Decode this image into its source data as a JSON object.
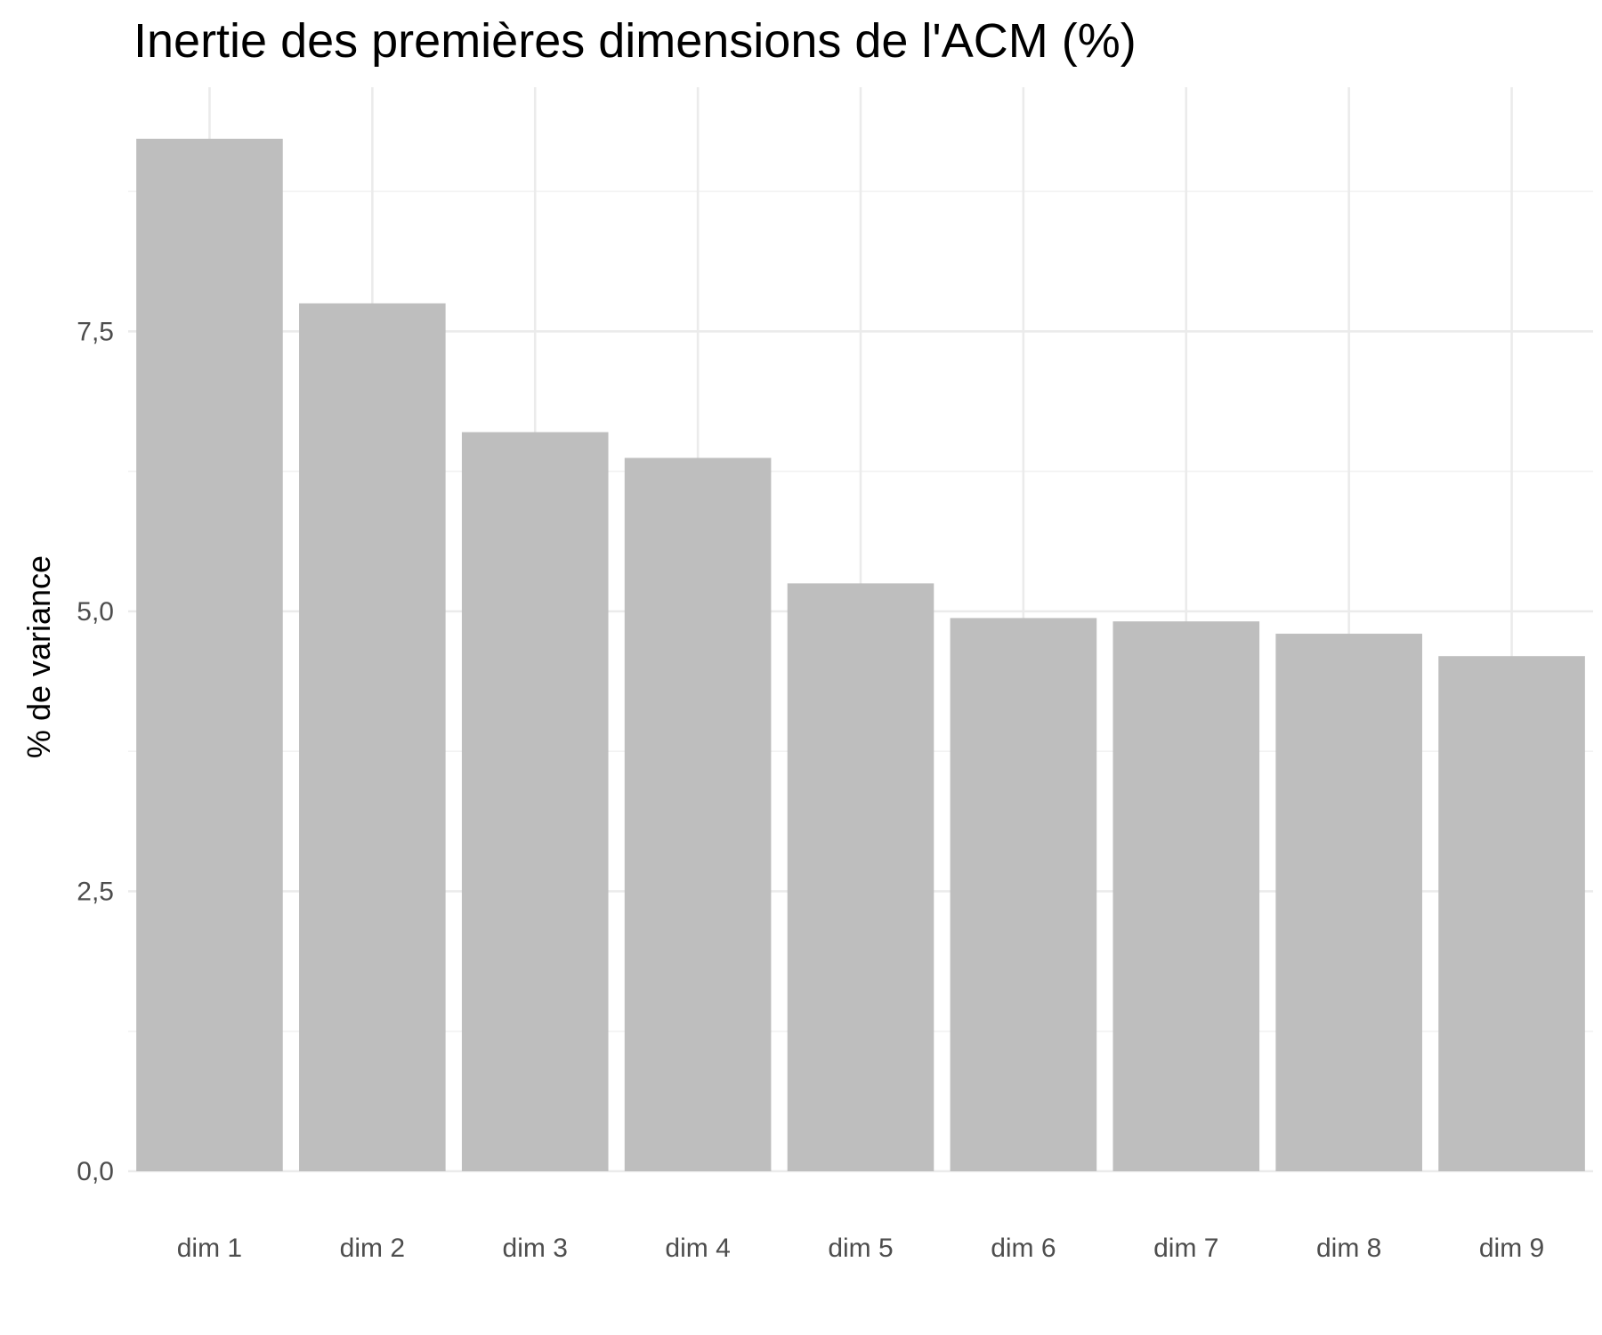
{
  "chart_data": {
    "type": "bar",
    "title": "Inertie des premières dimensions de l'ACM (%)",
    "xlabel": "",
    "ylabel": "% de variance",
    "categories": [
      "dim 1",
      "dim 2",
      "dim 3",
      "dim 4",
      "dim 5",
      "dim 6",
      "dim 7",
      "dim 8",
      "dim 9"
    ],
    "values": [
      9.22,
      7.75,
      6.6,
      6.37,
      5.25,
      4.94,
      4.91,
      4.8,
      4.6
    ],
    "ylim": [
      0,
      9.68
    ],
    "yticks": [
      0,
      2.5,
      5,
      7.5
    ],
    "ytick_labels": [
      "0,0",
      "2,5",
      "5,0",
      "7,5"
    ],
    "bar_color": "#bebebe",
    "grid": true,
    "legend": "none"
  }
}
